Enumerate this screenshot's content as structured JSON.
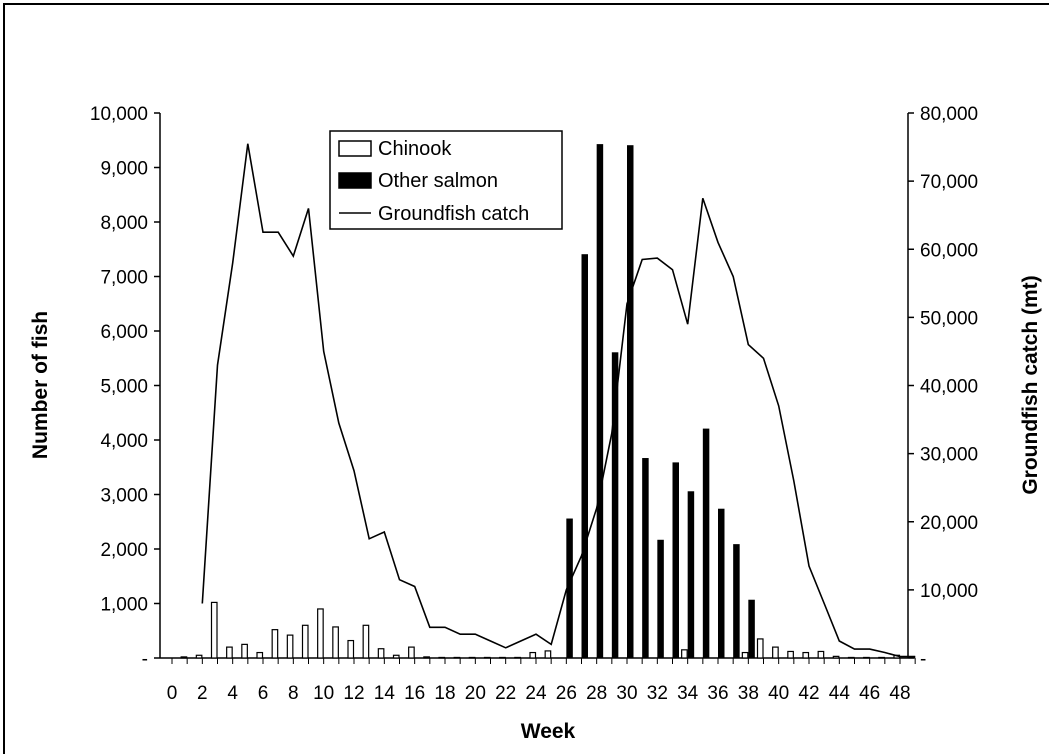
{
  "chart_data": {
    "type": "bar",
    "xlabel": "Week",
    "ylabel": "Number of fish",
    "y2label": "Groundfish catch (mt)",
    "ylim": [
      0,
      10000
    ],
    "y2lim": [
      0,
      80000
    ],
    "x_ticks": [
      0,
      2,
      4,
      6,
      8,
      10,
      12,
      14,
      16,
      18,
      20,
      22,
      24,
      26,
      28,
      30,
      32,
      34,
      36,
      38,
      40,
      42,
      44,
      46,
      48
    ],
    "x_tick_labels": [
      "0",
      "2",
      "4",
      "6",
      "8",
      "10",
      "12",
      "14",
      "16",
      "18",
      "20",
      "22",
      "24",
      "26",
      "28",
      "30",
      "32",
      "34",
      "36",
      "38",
      "40",
      "42",
      "44",
      "46",
      "48"
    ],
    "y_tick_labels": [
      "-",
      "1,000",
      "2,000",
      "3,000",
      "4,000",
      "5,000",
      "6,000",
      "7,000",
      "8,000",
      "9,000",
      "10,000"
    ],
    "y2_tick_labels": [
      "-",
      "10,000",
      "20,000",
      "30,000",
      "40,000",
      "50,000",
      "60,000",
      "70,000",
      "80,000"
    ],
    "legend": {
      "position": "top-center",
      "entries": [
        "Chinook",
        "Other salmon",
        "Groundfish catch"
      ]
    },
    "weeks": [
      1,
      2,
      3,
      4,
      5,
      6,
      7,
      8,
      9,
      10,
      11,
      12,
      13,
      14,
      15,
      16,
      17,
      18,
      19,
      20,
      21,
      22,
      23,
      24,
      25,
      26,
      27,
      28,
      29,
      30,
      31,
      32,
      33,
      34,
      35,
      36,
      37,
      38,
      39,
      40,
      41,
      42,
      43,
      44,
      45,
      46,
      47,
      48,
      49
    ],
    "series": [
      {
        "name": "Chinook",
        "type": "bar",
        "color": "#ffffff",
        "axis": "left",
        "values": [
          20,
          50,
          1020,
          200,
          250,
          100,
          520,
          420,
          600,
          900,
          570,
          320,
          600,
          170,
          50,
          200,
          20,
          10,
          10,
          10,
          10,
          10,
          10,
          100,
          130,
          0,
          0,
          0,
          0,
          0,
          0,
          0,
          0,
          150,
          0,
          0,
          0,
          100,
          350,
          200,
          120,
          100,
          120,
          30,
          10,
          10,
          10,
          50,
          20
        ]
      },
      {
        "name": "Other salmon",
        "type": "bar",
        "color": "#000000",
        "axis": "left",
        "values": [
          0,
          0,
          0,
          0,
          0,
          0,
          0,
          0,
          0,
          0,
          0,
          0,
          0,
          0,
          0,
          0,
          0,
          0,
          0,
          0,
          0,
          0,
          0,
          0,
          0,
          2550,
          7400,
          9420,
          5600,
          9400,
          3660,
          2160,
          3580,
          3050,
          4200,
          2730,
          2080,
          1060,
          0,
          0,
          0,
          0,
          0,
          0,
          0,
          0,
          0,
          0,
          0
        ]
      },
      {
        "name": "Groundfish catch",
        "type": "line",
        "color": "#000000",
        "axis": "right",
        "x": [
          2,
          3,
          4,
          5,
          6,
          7,
          8,
          9,
          10,
          11,
          12,
          13,
          14,
          15,
          16,
          17,
          18,
          19,
          20,
          21,
          22,
          23,
          24,
          25,
          26,
          27,
          28,
          29,
          30,
          31,
          32,
          33,
          34,
          35,
          36,
          37,
          38,
          39,
          40,
          41,
          42,
          43,
          44,
          45,
          46,
          47,
          48,
          49
        ],
        "values": [
          8000,
          43000,
          58000,
          75500,
          62500,
          62500,
          59000,
          66000,
          45000,
          34500,
          27500,
          17500,
          18500,
          11500,
          10500,
          4500,
          4500,
          3500,
          3500,
          2500,
          1500,
          2500,
          3500,
          2000,
          10000,
          15000,
          22000,
          33000,
          52000,
          58500,
          58700,
          57000,
          49000,
          67500,
          61000,
          56000,
          46000,
          44000,
          37000,
          26000,
          13500,
          8000,
          2500,
          1300,
          1300,
          800,
          200,
          200
        ]
      }
    ]
  }
}
